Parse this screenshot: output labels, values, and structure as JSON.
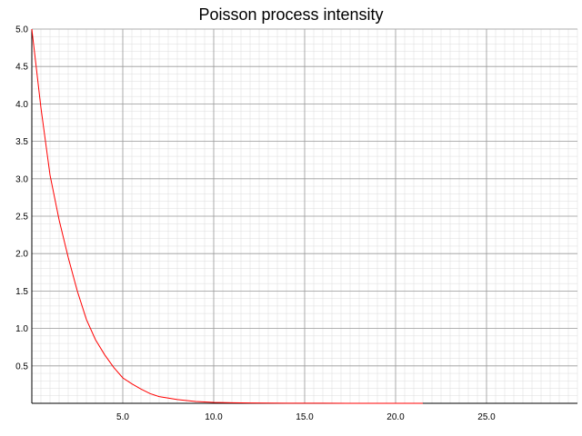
{
  "chart_data": {
    "type": "line",
    "title": "Poisson process intensity",
    "xlabel": "",
    "ylabel": "",
    "xlim": [
      0,
      30
    ],
    "ylim": [
      0,
      5
    ],
    "x_ticks": [
      5,
      10,
      15,
      20,
      25
    ],
    "x_tick_labels": [
      "5.0",
      "10.0",
      "15.0",
      "20.0",
      "25.0"
    ],
    "y_ticks": [
      0.5,
      1,
      1.5,
      2,
      2.5,
      3,
      3.5,
      4,
      4.5,
      5
    ],
    "y_tick_labels": [
      "0.5",
      "1.0",
      "1.5",
      "2.0",
      "2.5",
      "3.0",
      "3.5",
      "4.0",
      "4.5",
      "5.0"
    ],
    "grid": true,
    "series": [
      {
        "color": "#ff0000",
        "x": [
          0,
          0.5,
          1,
          1.5,
          2,
          2.5,
          3,
          3.5,
          4,
          4.5,
          5,
          5.5,
          6,
          6.5,
          7,
          8,
          9,
          10,
          11,
          12,
          14,
          16,
          18,
          20,
          21.5
        ],
        "y": [
          5.0,
          3.95,
          3.05,
          2.45,
          1.95,
          1.5,
          1.12,
          0.85,
          0.65,
          0.48,
          0.34,
          0.26,
          0.19,
          0.13,
          0.09,
          0.05,
          0.025,
          0.012,
          0.007,
          0.004,
          0.002,
          0.001,
          0.0005,
          0.0002,
          0.0001
        ]
      }
    ]
  }
}
